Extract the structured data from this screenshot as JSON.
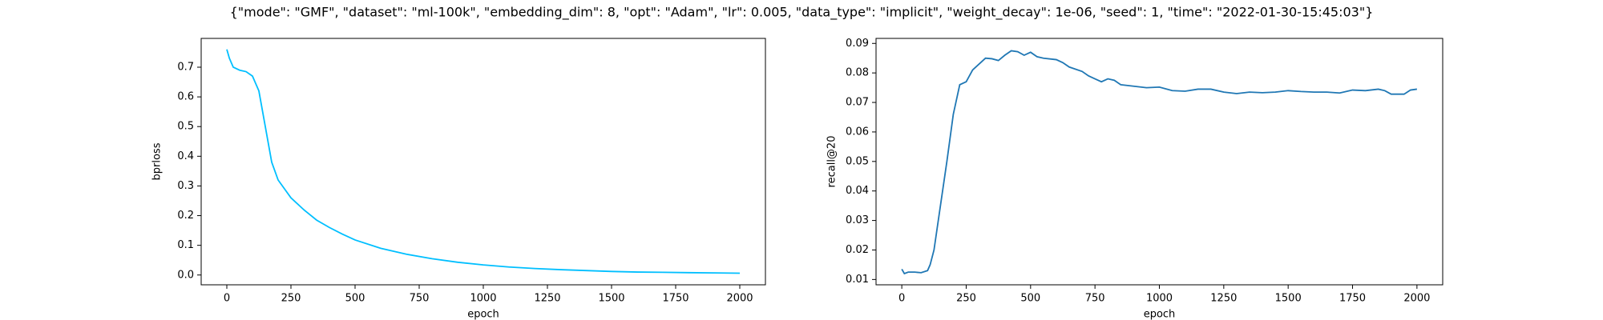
{
  "suptitle": "{\"mode\": \"GMF\", \"dataset\": \"ml-100k\", \"embedding_dim\": 8, \"opt\": \"Adam\", \"lr\": 0.005, \"data_type\": \"implicit\", \"weight_decay\": 1e-06, \"seed\": 1, \"time\": \"2022-01-30-15:45:03\"}",
  "chart_data": [
    {
      "type": "line",
      "xlabel": "epoch",
      "ylabel": "bprloss",
      "x": [
        0,
        10,
        25,
        50,
        75,
        100,
        125,
        150,
        175,
        200,
        250,
        300,
        350,
        400,
        450,
        500,
        600,
        700,
        800,
        900,
        1000,
        1100,
        1200,
        1300,
        1400,
        1500,
        1600,
        1700,
        1800,
        1900,
        2000
      ],
      "series": [
        {
          "name": "bprloss",
          "color": "#00bfff",
          "values": [
            0.76,
            0.73,
            0.7,
            0.69,
            0.685,
            0.67,
            0.62,
            0.5,
            0.38,
            0.32,
            0.26,
            0.22,
            0.185,
            0.16,
            0.138,
            0.118,
            0.09,
            0.07,
            0.055,
            0.043,
            0.034,
            0.027,
            0.022,
            0.018,
            0.015,
            0.012,
            0.01,
            0.009,
            0.008,
            0.007,
            0.006
          ]
        }
      ],
      "xlim": [
        -100,
        2100
      ],
      "xticks": [
        0,
        250,
        500,
        750,
        1000,
        1250,
        1500,
        1750,
        2000
      ],
      "ylim": [
        -0.033,
        0.797
      ],
      "yticks": [
        {
          "value": 0,
          "label": "0.0"
        },
        0.1,
        0.2,
        0.3,
        0.4,
        0.5,
        0.6,
        0.7
      ],
      "grid": false
    },
    {
      "type": "line",
      "xlabel": "epoch",
      "ylabel": "recall@20",
      "x": [
        0,
        10,
        25,
        50,
        75,
        100,
        110,
        125,
        150,
        175,
        200,
        225,
        250,
        275,
        300,
        325,
        350,
        375,
        400,
        425,
        450,
        475,
        500,
        525,
        550,
        600,
        625,
        650,
        700,
        725,
        750,
        775,
        800,
        825,
        850,
        900,
        950,
        1000,
        1050,
        1100,
        1150,
        1200,
        1250,
        1300,
        1350,
        1400,
        1450,
        1500,
        1550,
        1600,
        1650,
        1700,
        1750,
        1800,
        1850,
        1875,
        1900,
        1950,
        1975,
        2000
      ],
      "series": [
        {
          "name": "recall@20",
          "color": "#1f77b4",
          "values": [
            0.0135,
            0.012,
            0.0125,
            0.0125,
            0.0123,
            0.013,
            0.015,
            0.02,
            0.035,
            0.05,
            0.066,
            0.076,
            0.077,
            0.081,
            0.083,
            0.085,
            0.0848,
            0.0842,
            0.086,
            0.0875,
            0.0872,
            0.086,
            0.087,
            0.0855,
            0.085,
            0.0845,
            0.0835,
            0.082,
            0.0805,
            0.079,
            0.078,
            0.077,
            0.078,
            0.0775,
            0.076,
            0.0755,
            0.075,
            0.0752,
            0.074,
            0.0738,
            0.0745,
            0.0745,
            0.0735,
            0.073,
            0.0735,
            0.0733,
            0.0735,
            0.074,
            0.0737,
            0.0735,
            0.0735,
            0.0732,
            0.0742,
            0.074,
            0.0745,
            0.074,
            0.0728,
            0.0728,
            0.0742,
            0.0745
          ]
        }
      ],
      "xlim": [
        -100,
        2100
      ],
      "xticks": [
        0,
        250,
        500,
        750,
        1000,
        1250,
        1500,
        1750,
        2000
      ],
      "ylim": [
        0.0082,
        0.0917
      ],
      "yticks": [
        0.01,
        0.02,
        0.03,
        0.04,
        0.05,
        0.06,
        0.07,
        0.08,
        0.09
      ],
      "grid": false
    }
  ]
}
